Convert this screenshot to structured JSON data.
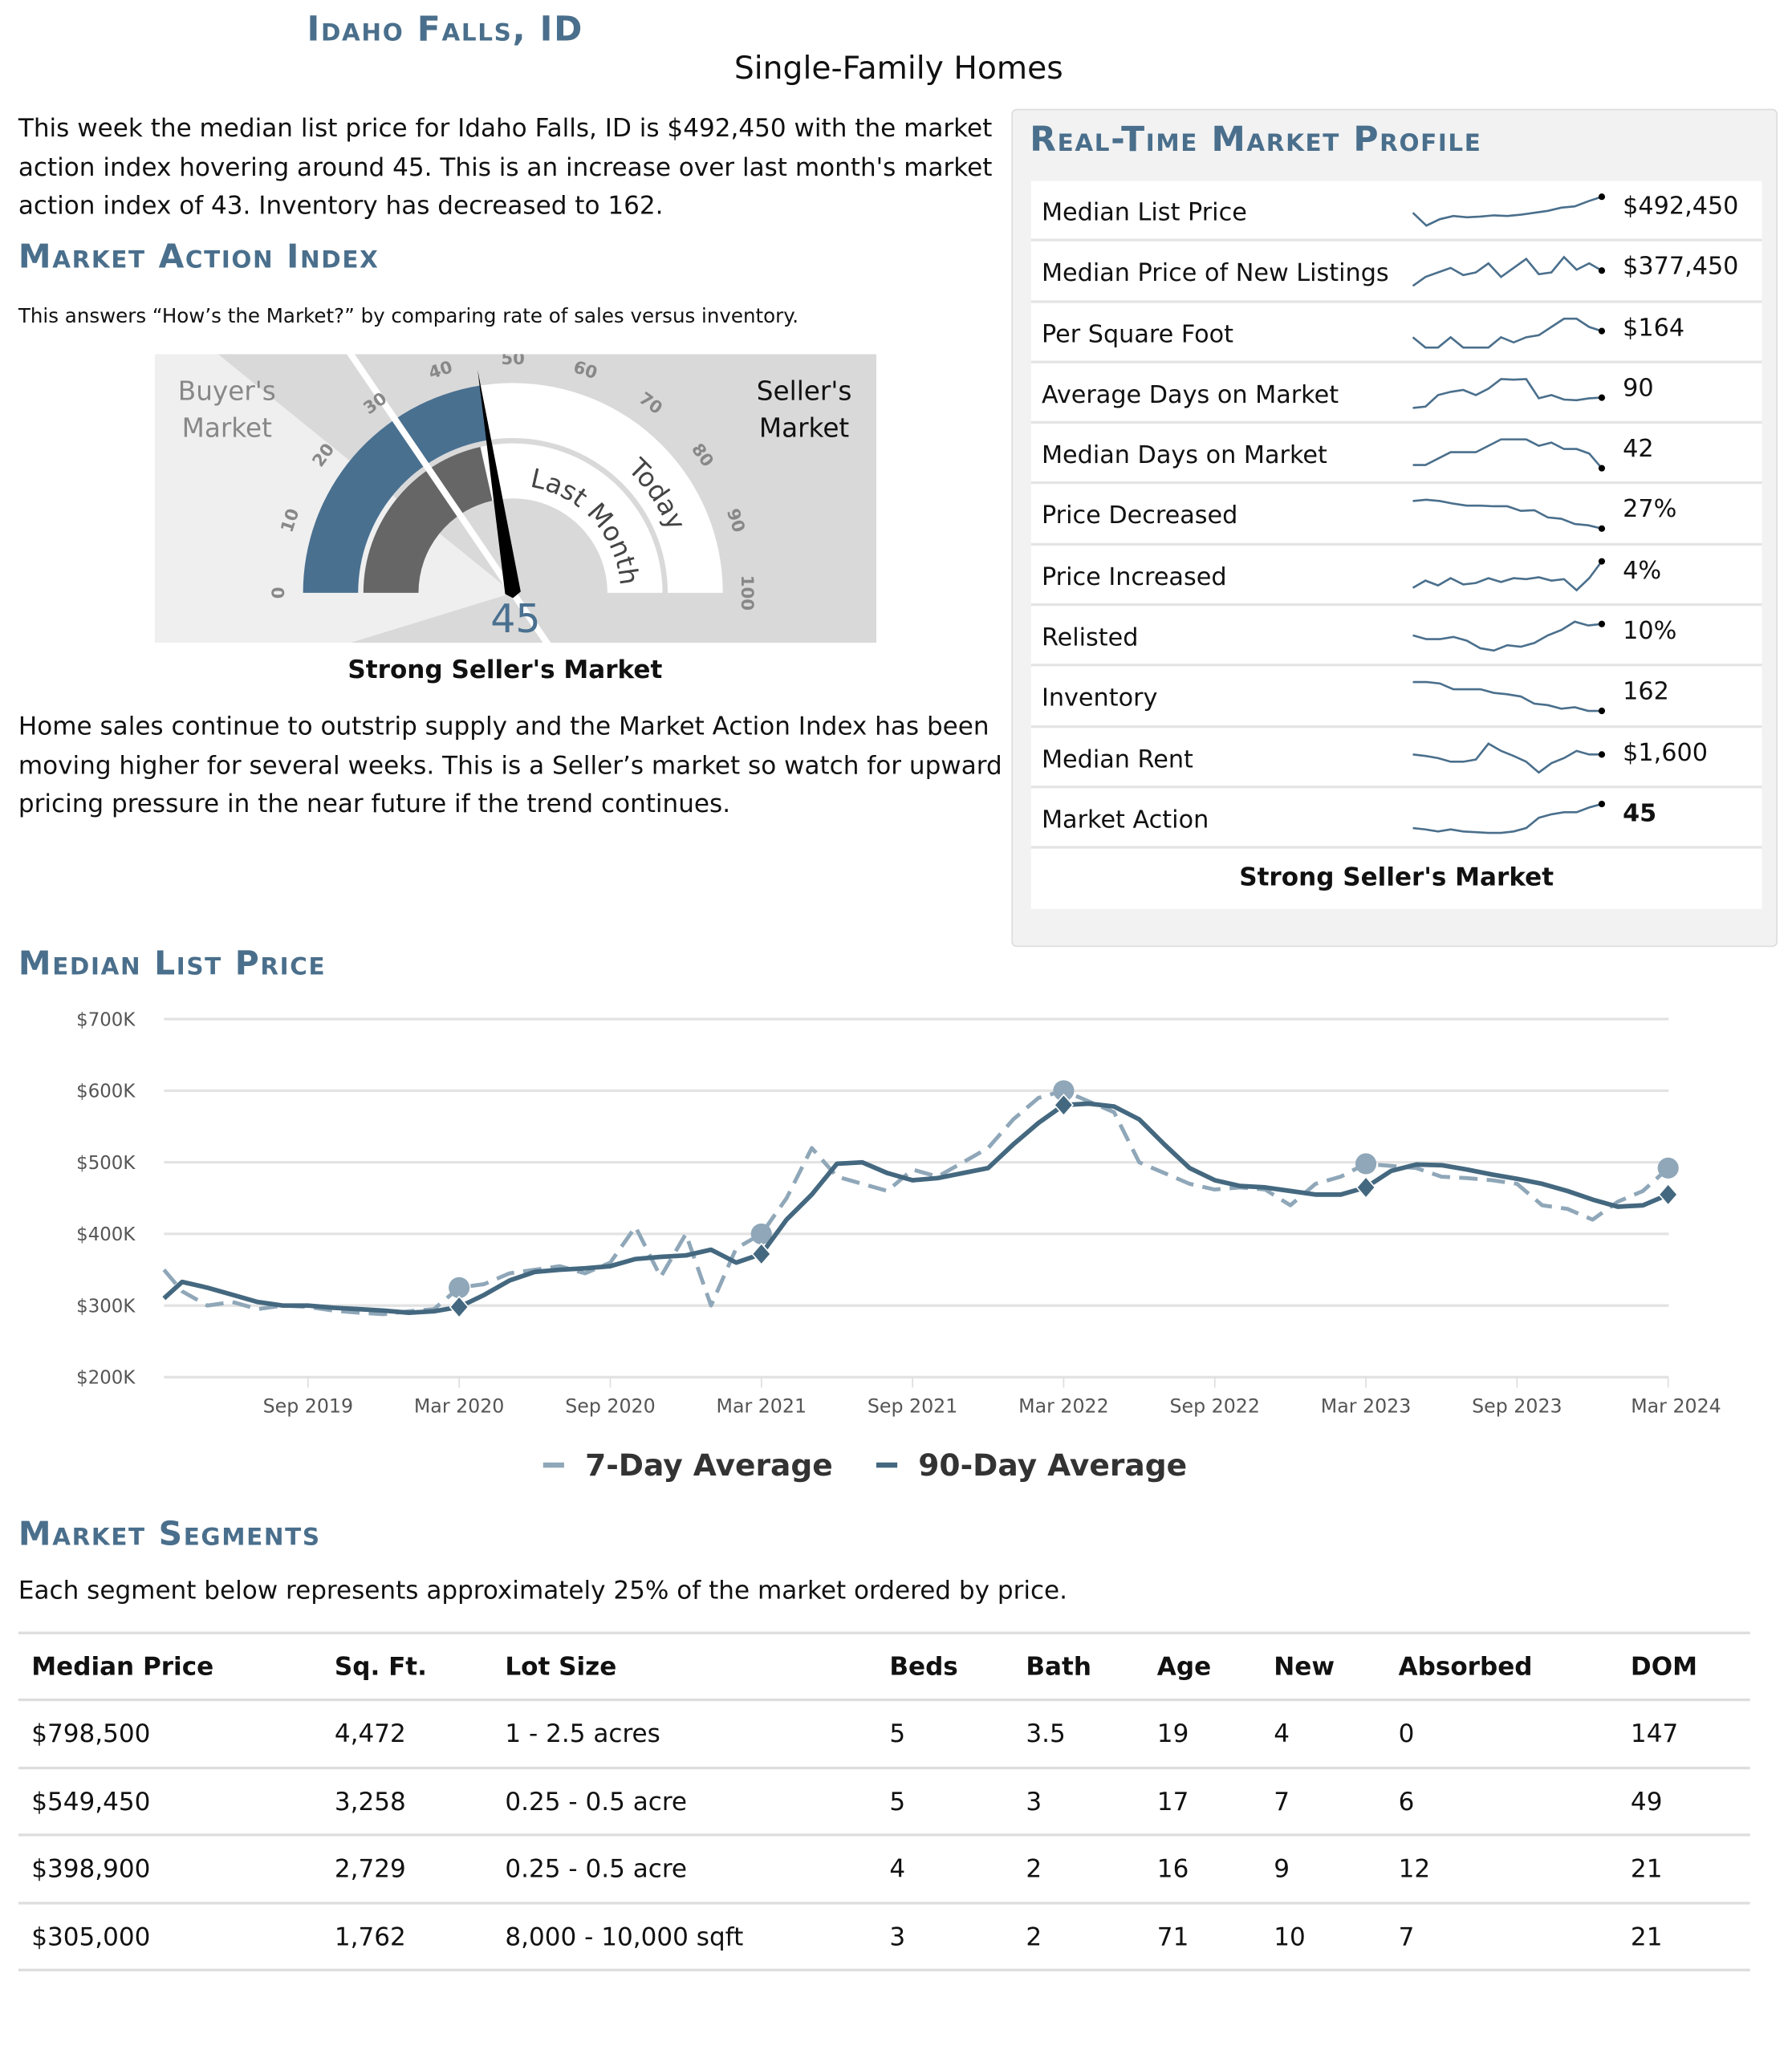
{
  "header": {
    "city": "Idaho Falls, ID",
    "subtitle": "Single-Family Homes"
  },
  "intro": "This week the median list price for Idaho Falls, ID is $492,450 with the market action index hovering around 45. This is an increase over last month's market action index of 43. Inventory has decreased to 162.",
  "mai": {
    "heading": "Market Action Index",
    "desc": "This answers “How’s the Market?” by comparing rate of sales versus inventory.",
    "gauge": {
      "today": 45,
      "last_month": 43,
      "buyers_label_1": "Buyer's",
      "buyers_label_2": "Market",
      "sellers_label_1": "Seller's",
      "sellers_label_2": "Market",
      "last_month_label": "Last Month",
      "today_label": "Today",
      "ticks": [
        "0",
        "10",
        "20",
        "30",
        "40",
        "50",
        "60",
        "70",
        "80",
        "90",
        "100"
      ],
      "value_text": "45"
    },
    "status": "Strong Seller's Market",
    "commentary": "Home sales continue to outstrip supply and the Market Action Index has been moving higher for several weeks. This is a Seller’s market so watch for upward pricing pressure in the near future if the trend continues."
  },
  "profile": {
    "heading": "Real-Time Market Profile",
    "status": "Strong Seller's Market",
    "rows": [
      {
        "label": "Median List Price",
        "value": "$492,450",
        "spark": [
          5,
          3,
          4,
          4.5,
          4.3,
          4.4,
          4.6,
          4.5,
          4.7,
          5,
          5.3,
          5.8,
          6,
          6.8,
          7.5
        ]
      },
      {
        "label": "Median Price of New Listings",
        "value": "$377,450",
        "spark": [
          4,
          5,
          5.5,
          6,
          5.2,
          5.5,
          6.5,
          5,
          6,
          7,
          5.3,
          5.5,
          7.2,
          5.8,
          6.5,
          5.7
        ]
      },
      {
        "label": "Per Square Foot",
        "value": "$164",
        "spark": [
          5,
          4,
          4,
          5,
          4,
          4,
          4,
          5,
          4.5,
          5,
          5.2,
          6,
          6.8,
          6.8,
          6,
          5.6
        ]
      },
      {
        "label": "Average Days on Market",
        "value": "90",
        "spark": [
          3,
          3.2,
          5,
          5.5,
          5.8,
          5,
          6,
          7.5,
          7.4,
          7.5,
          4.5,
          5,
          4.3,
          4.2,
          4.5,
          4.6
        ]
      },
      {
        "label": "Median Days on Market",
        "value": "42",
        "spark": [
          4,
          4,
          5,
          6,
          6,
          6,
          7,
          8,
          8,
          8,
          7,
          7.5,
          6.5,
          6.5,
          5.8,
          3.5
        ]
      },
      {
        "label": "Price Decreased",
        "value": "27%",
        "spark": [
          8,
          8.2,
          8,
          7.6,
          7.3,
          7.3,
          7.2,
          7.2,
          6.5,
          6.6,
          5.5,
          5.3,
          4.5,
          4.3,
          3.8
        ]
      },
      {
        "label": "Price Increased",
        "value": "4%",
        "spark": [
          4,
          5.5,
          4.5,
          6,
          4.7,
          5,
          6,
          5.2,
          6,
          5.8,
          6.2,
          5.5,
          5.8,
          3.5,
          6,
          9.5
        ]
      },
      {
        "label": "Relisted",
        "value": "10%",
        "spark": [
          6,
          5.5,
          5.5,
          5.8,
          5.3,
          4.3,
          4,
          4.7,
          4.5,
          5,
          6,
          6.7,
          7.8,
          7.3,
          7.5
        ]
      },
      {
        "label": "Inventory",
        "value": "162",
        "spark": [
          8,
          8,
          7.8,
          7,
          7,
          7,
          6.5,
          6.3,
          6,
          5,
          4.8,
          4.3,
          4.5,
          4,
          4
        ]
      },
      {
        "label": "Median Rent",
        "value": "$1,600",
        "spark": [
          6,
          5.8,
          5.5,
          5,
          5,
          5.3,
          7.5,
          6.5,
          5.8,
          5,
          3.5,
          4.8,
          5.5,
          6.5,
          6,
          6
        ]
      },
      {
        "label": "Market Action",
        "value": "45",
        "spark": [
          4,
          3.8,
          3.5,
          3.8,
          3.5,
          3.4,
          3.3,
          3.3,
          3.5,
          4,
          5.5,
          6,
          6.3,
          6.3,
          7,
          7.5
        ]
      }
    ]
  },
  "mlp": {
    "heading": "Median List Price"
  },
  "chart_data": {
    "type": "line",
    "title": "Median List Price",
    "xlabel": "",
    "ylabel": "",
    "ylim": [
      200,
      700
    ],
    "y_ticks": [
      "$200K",
      "$300K",
      "$400K",
      "$500K",
      "$600K",
      "$700K"
    ],
    "y_tick_values": [
      200,
      300,
      400,
      500,
      600,
      700
    ],
    "x_start": "2019-03",
    "x_step": "month",
    "x_ticks": [
      "Sep 2019",
      "Mar 2020",
      "Sep 2020",
      "Mar 2021",
      "Sep 2021",
      "Mar 2022",
      "Sep 2022",
      "Mar 2023",
      "Sep 2023",
      "Mar 2024"
    ],
    "x_tick_index": [
      6,
      12,
      18,
      24,
      30,
      36,
      42,
      48,
      54,
      60
    ],
    "grid": true,
    "legend": "bottom-center",
    "series": [
      {
        "name": "7-Day Average",
        "color": "#8fa7b8",
        "dashed": true,
        "marker": "circle",
        "marker_index": [
          12,
          24,
          36,
          48,
          60
        ],
        "values": [
          350,
          320,
          300,
          305,
          295,
          300,
          298,
          293,
          290,
          288,
          292,
          295,
          325,
          330,
          345,
          350,
          355,
          345,
          360,
          410,
          340,
          400,
          300,
          380,
          400,
          450,
          520,
          480,
          470,
          460,
          490,
          480,
          500,
          520,
          560,
          590,
          600,
          585,
          570,
          500,
          485,
          470,
          462,
          465,
          462,
          440,
          470,
          480,
          498,
          495,
          492,
          480,
          478,
          475,
          470,
          440,
          435,
          420,
          445,
          460,
          492
        ]
      },
      {
        "name": "90-Day Average",
        "color": "#44687f",
        "dashed": false,
        "marker": "diamond",
        "marker_index": [
          12,
          24,
          36,
          48,
          60
        ],
        "values": [
          310,
          333,
          325,
          315,
          305,
          300,
          300,
          297,
          295,
          293,
          290,
          292,
          298,
          315,
          335,
          347,
          350,
          352,
          355,
          365,
          368,
          370,
          378,
          360,
          372,
          420,
          455,
          498,
          500,
          485,
          475,
          478,
          485,
          492,
          525,
          555,
          580,
          582,
          578,
          560,
          525,
          492,
          475,
          467,
          465,
          460,
          455,
          455,
          465,
          488,
          497,
          496,
          490,
          483,
          477,
          470,
          460,
          448,
          438,
          440,
          455
        ]
      }
    ]
  },
  "segments": {
    "heading": "Market Segments",
    "desc": "Each segment below represents approximately 25% of the market ordered by price.",
    "columns": [
      "Median Price",
      "Sq. Ft.",
      "Lot Size",
      "Beds",
      "Bath",
      "Age",
      "New",
      "Absorbed",
      "DOM"
    ],
    "rows": [
      [
        "$798,500",
        "4,472",
        "1 - 2.5 acres",
        "5",
        "3.5",
        "19",
        "4",
        "0",
        "147"
      ],
      [
        "$549,450",
        "3,258",
        "0.25 - 0.5 acre",
        "5",
        "3",
        "17",
        "7",
        "6",
        "49"
      ],
      [
        "$398,900",
        "2,729",
        "0.25 - 0.5 acre",
        "4",
        "2",
        "16",
        "9",
        "12",
        "21"
      ],
      [
        "$305,000",
        "1,762",
        "8,000 - 10,000 sqft",
        "3",
        "2",
        "71",
        "10",
        "7",
        "21"
      ]
    ]
  },
  "colors": {
    "accent": "#4a6f8c",
    "gauge_today": "#4a7090",
    "gauge_last": "#666666"
  }
}
